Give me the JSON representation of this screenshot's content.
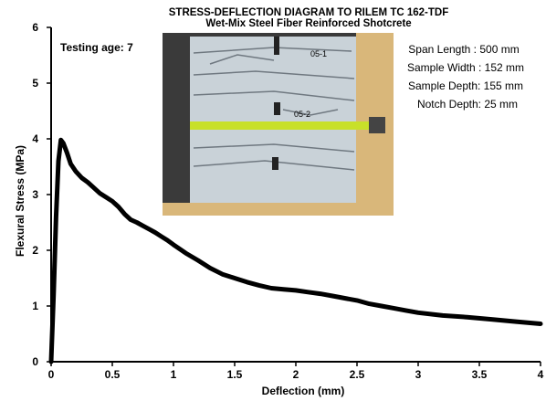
{
  "chart_data": {
    "type": "line",
    "title": "STRESS-DEFLECTION DIAGRAM TO RILEM TC 162-TDF",
    "subtitle": "Wet-Mix Steel Fiber Reinforced Shotcrete",
    "xlabel": "Deflection (mm)",
    "ylabel": "Flexural Stress (MPa)",
    "xlim": [
      0,
      4
    ],
    "ylim": [
      0,
      6
    ],
    "xticks": [
      "0",
      "0.5",
      "1",
      "1.5",
      "2",
      "2.5",
      "3",
      "3.5",
      "4"
    ],
    "yticks": [
      "0",
      "1",
      "2",
      "3",
      "4",
      "5",
      "6"
    ],
    "grid": false,
    "legend": "none",
    "line_color": "#000000",
    "annotations": {
      "testing_age": "Testing age: 7",
      "specimen_info": [
        "Span Length : 500 mm",
        "Sample Width : 152 mm",
        "Sample Depth: 155 mm",
        "Notch Depth: 25 mm"
      ]
    },
    "photo_inset": {
      "labels": [
        "05-1",
        "05-2"
      ],
      "colors": {
        "frame": "#d9b77a",
        "background": "#3a3a3a",
        "specimen": "#c9d2d8",
        "strip": "#c8e02a"
      }
    },
    "series": [
      {
        "x": [
          0,
          0.02,
          0.04,
          0.06,
          0.08,
          0.1,
          0.13,
          0.16,
          0.2,
          0.25,
          0.3,
          0.35,
          0.4,
          0.45,
          0.5,
          0.55,
          0.6,
          0.65,
          0.7,
          0.75,
          0.8,
          0.85,
          0.9,
          0.95,
          1.0,
          1.1,
          1.2,
          1.3,
          1.4,
          1.5,
          1.6,
          1.7,
          1.8,
          1.9,
          2.0,
          2.1,
          2.2,
          2.3,
          2.4,
          2.5,
          2.6,
          2.7,
          2.8,
          2.9,
          3.0,
          3.2,
          3.4,
          3.6,
          3.8,
          4.0
        ],
        "y": [
          0,
          1.2,
          2.6,
          3.6,
          3.98,
          3.92,
          3.75,
          3.55,
          3.42,
          3.3,
          3.22,
          3.12,
          3.02,
          2.95,
          2.88,
          2.78,
          2.65,
          2.55,
          2.5,
          2.44,
          2.38,
          2.32,
          2.25,
          2.18,
          2.1,
          1.95,
          1.82,
          1.68,
          1.57,
          1.5,
          1.43,
          1.37,
          1.32,
          1.3,
          1.28,
          1.25,
          1.22,
          1.18,
          1.14,
          1.1,
          1.04,
          1.0,
          0.96,
          0.92,
          0.88,
          0.83,
          0.8,
          0.76,
          0.72,
          0.68
        ]
      }
    ]
  }
}
